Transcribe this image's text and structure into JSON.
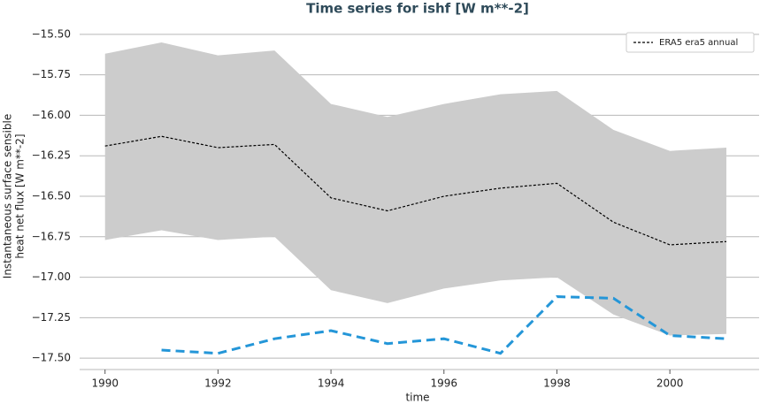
{
  "chart_data": {
    "type": "line",
    "title": "Time series for ishf [W m**-2]",
    "x_label": "time",
    "y_label": [
      "Instantaneous surface sensible",
      "heat net flux [W m**-2]"
    ],
    "x": [
      1990,
      1991,
      1992,
      1993,
      1994,
      1995,
      1996,
      1997,
      1998,
      1999,
      2000,
      2001
    ],
    "band": {
      "color": "#cccccc",
      "upper": [
        -15.62,
        -15.55,
        -15.63,
        -15.6,
        -15.93,
        -16.01,
        -15.93,
        -15.87,
        -15.85,
        -16.09,
        -16.22,
        -16.2
      ],
      "lower": [
        -16.77,
        -16.71,
        -16.77,
        -16.75,
        -17.08,
        -17.16,
        -17.07,
        -17.02,
        -17.0,
        -17.23,
        -17.36,
        -17.35
      ]
    },
    "series": [
      {
        "name": "ERA5 era5 annual",
        "color": "#000000",
        "dash": "3,2",
        "width": 1.2,
        "values": [
          -16.19,
          -16.13,
          -16.2,
          -16.18,
          -16.51,
          -16.59,
          -16.5,
          -16.45,
          -16.42,
          -16.66,
          -16.8,
          -16.78
        ]
      },
      {
        "color": "#2496d8",
        "dash": "10,6",
        "width": 3,
        "values": [
          null,
          -17.45,
          -17.47,
          -17.38,
          -17.33,
          -17.41,
          -17.38,
          -17.47,
          -17.12,
          -17.13,
          -17.36,
          -17.38
        ]
      }
    ],
    "xlim": [
      1989.55,
      2001.58
    ],
    "ylim": [
      -17.57,
      -15.43
    ],
    "xticks": [
      1990,
      1992,
      1994,
      1996,
      1998,
      2000
    ],
    "yticks": [
      {
        "value": -15.5,
        "label": "−15.50"
      },
      {
        "value": -15.75,
        "label": "−15.75"
      },
      {
        "value": -16.0,
        "label": "−16.00"
      },
      {
        "value": -16.25,
        "label": "−16.25"
      },
      {
        "value": -16.5,
        "label": "−16.50"
      },
      {
        "value": -16.75,
        "label": "−16.75"
      },
      {
        "value": -17.0,
        "label": "−17.00"
      },
      {
        "value": -17.25,
        "label": "−17.25"
      },
      {
        "value": -17.5,
        "label": "−17.50"
      }
    ],
    "grid": true,
    "legend": "upper right"
  }
}
